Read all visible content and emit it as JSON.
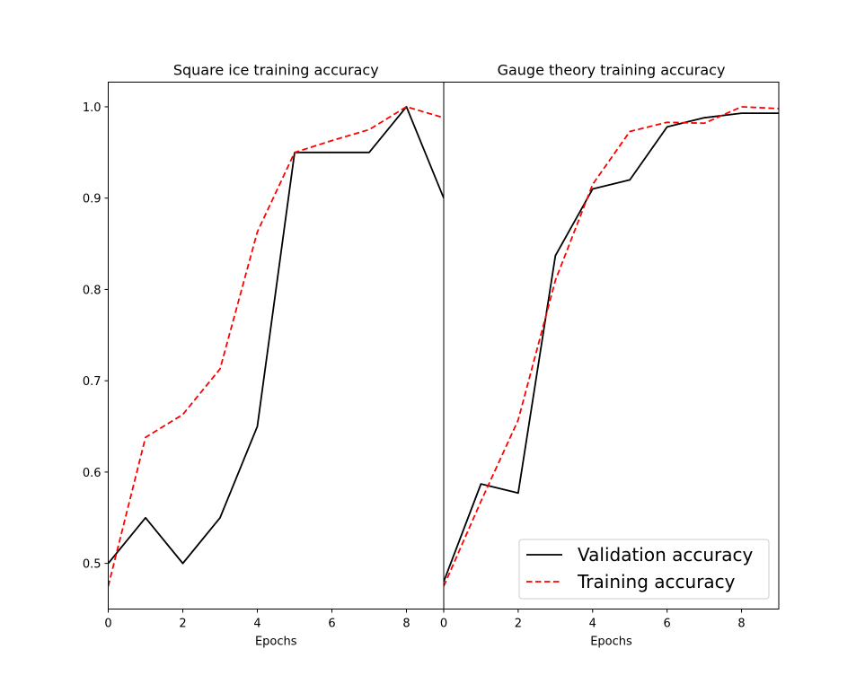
{
  "chart_data": [
    {
      "type": "line",
      "title": "Square ice training accuracy",
      "xlabel": "Epochs",
      "ylabel": "",
      "xlim": [
        0,
        9
      ],
      "ylim": [
        0.45,
        1.027
      ],
      "xticks": [
        0,
        2,
        4,
        6,
        8
      ],
      "yticks": [
        0.5,
        0.6,
        0.7,
        0.8,
        0.9,
        1.0
      ],
      "ytick_labels": [
        "0.5",
        "0.6",
        "0.7",
        "0.8",
        "0.9",
        "1.0"
      ],
      "grid": false,
      "series": [
        {
          "name": "Validation accuracy",
          "color": "#000000",
          "style": "solid",
          "x": [
            0,
            1,
            2,
            3,
            4,
            5,
            6,
            7,
            8,
            9
          ],
          "y": [
            0.5,
            0.55,
            0.5,
            0.55,
            0.65,
            0.95,
            0.95,
            0.95,
            1.0,
            0.9
          ]
        },
        {
          "name": "Training accuracy",
          "color": "#ff0000",
          "style": "dashed",
          "x": [
            0,
            1,
            2,
            3,
            4,
            5,
            6,
            7,
            8,
            9
          ],
          "y": [
            0.475,
            0.638,
            0.663,
            0.713,
            0.863,
            0.95,
            0.963,
            0.975,
            1.0,
            0.988
          ]
        }
      ]
    },
    {
      "type": "line",
      "title": "Gauge theory training accuracy",
      "xlabel": "Epochs",
      "ylabel": "",
      "xlim": [
        0,
        9
      ],
      "ylim": [
        0.45,
        1.027
      ],
      "xticks": [
        0,
        2,
        4,
        6,
        8
      ],
      "grid": false,
      "legend_position": "lower-right",
      "series": [
        {
          "name": "Validation accuracy",
          "color": "#000000",
          "style": "solid",
          "x": [
            0,
            1,
            2,
            3,
            4,
            5,
            6,
            7,
            8,
            9
          ],
          "y": [
            0.48,
            0.587,
            0.577,
            0.837,
            0.91,
            0.92,
            0.978,
            0.988,
            0.993,
            0.993
          ]
        },
        {
          "name": "Training accuracy",
          "color": "#ff0000",
          "style": "dashed",
          "x": [
            0,
            1,
            2,
            3,
            4,
            5,
            6,
            7,
            8,
            9
          ],
          "y": [
            0.475,
            0.568,
            0.657,
            0.81,
            0.915,
            0.973,
            0.983,
            0.982,
            1.0,
            0.998
          ]
        }
      ]
    }
  ]
}
